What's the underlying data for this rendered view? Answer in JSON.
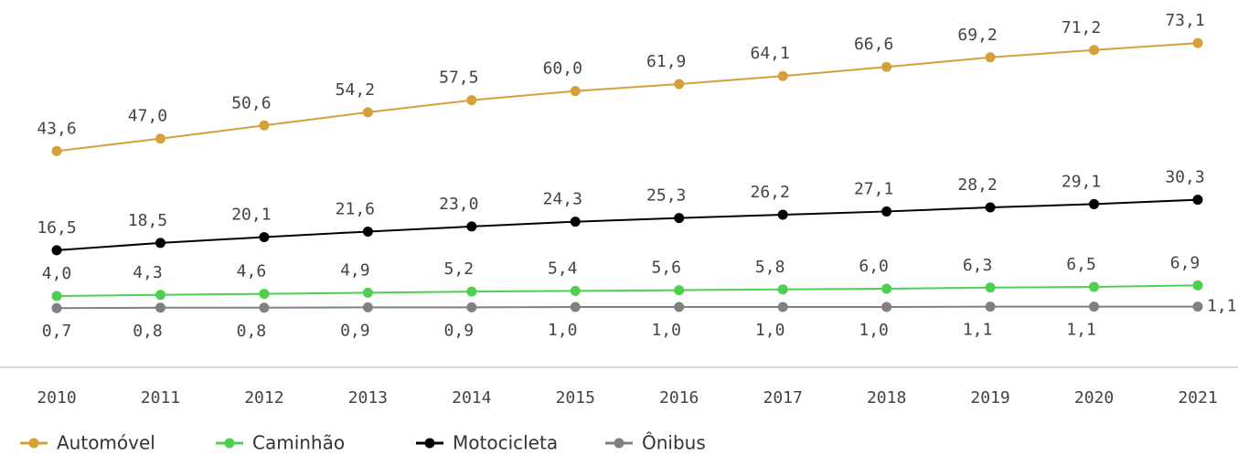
{
  "chart_data": {
    "type": "line",
    "categories": [
      "2010",
      "2011",
      "2012",
      "2013",
      "2014",
      "2015",
      "2016",
      "2017",
      "2018",
      "2019",
      "2020",
      "2021"
    ],
    "series": [
      {
        "name": "Automóvel",
        "color": "#d4a03a",
        "values": [
          43.6,
          47.0,
          50.6,
          54.2,
          57.5,
          60.0,
          61.9,
          64.1,
          66.6,
          69.2,
          71.2,
          73.1
        ],
        "value_labels": [
          "43,6",
          "47,0",
          "50,6",
          "54,2",
          "57,5",
          "60,0",
          "61,9",
          "64,1",
          "66,6",
          "69,2",
          "71,2",
          "73,1"
        ]
      },
      {
        "name": "Caminhão",
        "color": "#4fcf4f",
        "values": [
          4.0,
          4.3,
          4.6,
          4.9,
          5.2,
          5.4,
          5.6,
          5.8,
          6.0,
          6.3,
          6.5,
          6.9
        ],
        "value_labels": [
          "4,0",
          "4,3",
          "4,6",
          "4,9",
          "5,2",
          "5,4",
          "5,6",
          "5,8",
          "6,0",
          "6,3",
          "6,5",
          "6,9"
        ]
      },
      {
        "name": "Motocicleta",
        "color": "#000000",
        "values": [
          16.5,
          18.5,
          20.1,
          21.6,
          23.0,
          24.3,
          25.3,
          26.2,
          27.1,
          28.2,
          29.1,
          30.3
        ],
        "value_labels": [
          "16,5",
          "18,5",
          "20,1",
          "21,6",
          "23,0",
          "24,3",
          "25,3",
          "26,2",
          "27,1",
          "28,2",
          "29,1",
          "30,3"
        ]
      },
      {
        "name": "Ônibus",
        "color": "#808080",
        "values": [
          0.7,
          0.8,
          0.8,
          0.9,
          0.9,
          1.0,
          1.0,
          1.0,
          1.0,
          1.1,
          1.1,
          1.1
        ],
        "value_labels": [
          "0,7",
          "0,8",
          "0,8",
          "0,9",
          "0,9",
          "1,0",
          "1,0",
          "1,0",
          "1,0",
          "1,1",
          "1,1",
          "1,1"
        ]
      }
    ]
  }
}
